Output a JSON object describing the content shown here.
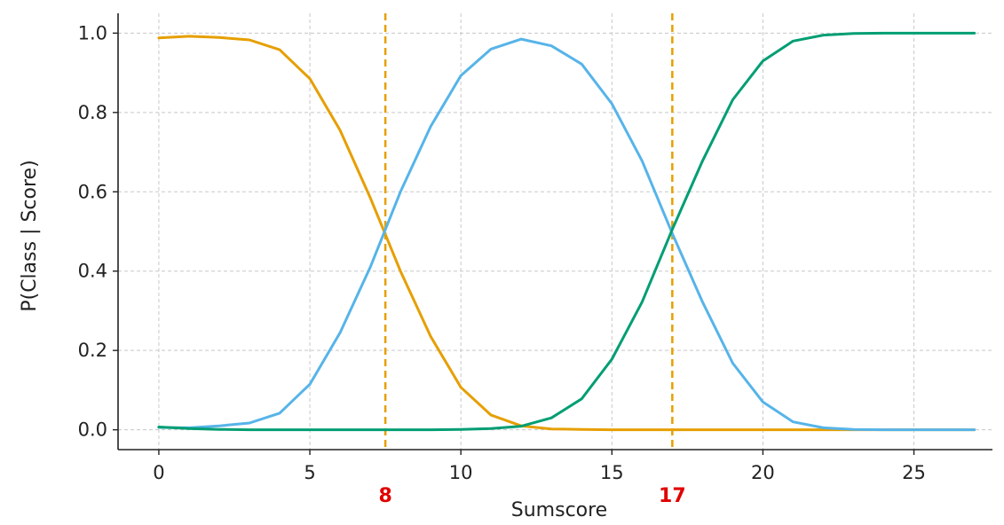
{
  "chart_data": {
    "type": "line",
    "title": "",
    "xlabel": "Sumscore",
    "ylabel": "P(Class | Score)",
    "xlim": [
      -1.35,
      27.6
    ],
    "ylim": [
      -0.05,
      1.05
    ],
    "grid": true,
    "x_ticks": [
      0,
      5,
      10,
      15,
      20,
      25
    ],
    "x_tick_labels": [
      "0",
      "5",
      "10",
      "15",
      "20",
      "25"
    ],
    "y_ticks": [
      0.0,
      0.2,
      0.4,
      0.6,
      0.8,
      1.0
    ],
    "y_tick_labels": [
      "0.0",
      "0.2",
      "0.4",
      "0.6",
      "0.8",
      "1.0"
    ],
    "x": [
      0,
      1,
      2,
      3,
      4,
      5,
      6,
      7,
      8,
      9,
      10,
      11,
      12,
      13,
      14,
      15,
      16,
      17,
      18,
      19,
      20,
      21,
      22,
      23,
      24,
      25,
      26,
      27
    ],
    "series": [
      {
        "color": "#E69F00",
        "values": [
          0.988,
          0.992,
          0.989,
          0.983,
          0.958,
          0.885,
          0.755,
          0.585,
          0.4,
          0.235,
          0.107,
          0.037,
          0.01,
          0.002,
          0.001,
          0,
          0,
          0,
          0,
          0,
          0,
          0,
          0,
          0,
          0,
          0,
          0,
          0
        ]
      },
      {
        "color": "#56B4E9",
        "values": [
          0.006,
          0.005,
          0.01,
          0.017,
          0.042,
          0.115,
          0.245,
          0.41,
          0.6,
          0.765,
          0.893,
          0.96,
          0.985,
          0.968,
          0.922,
          0.822,
          0.678,
          0.495,
          0.322,
          0.168,
          0.07,
          0.02,
          0.005,
          0.001,
          0,
          0,
          0,
          0
        ]
      },
      {
        "color": "#009E73",
        "values": [
          0.007,
          0.003,
          0.001,
          0,
          0,
          0,
          0,
          0,
          0,
          0,
          0.001,
          0.003,
          0.009,
          0.03,
          0.078,
          0.178,
          0.322,
          0.505,
          0.678,
          0.832,
          0.93,
          0.98,
          0.995,
          0.999,
          1.0,
          1.0,
          1.0,
          1.0
        ]
      }
    ],
    "cutoffs": [
      {
        "x": 7.5,
        "label": "8",
        "line_color": "#E69F00",
        "label_color": "#E00000"
      },
      {
        "x": 17.0,
        "label": "17",
        "line_color": "#E69F00",
        "label_color": "#E00000"
      }
    ]
  }
}
